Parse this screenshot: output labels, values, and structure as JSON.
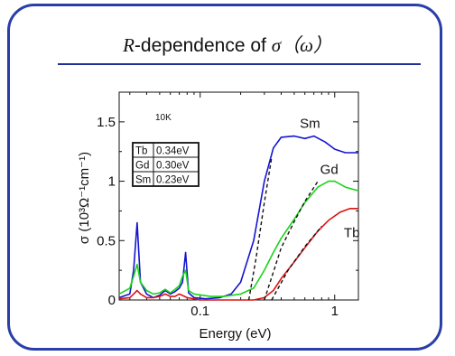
{
  "slide": {
    "title_prefix": "R",
    "title_mid": "-dependence of ",
    "title_sigma": "σ（ω）"
  },
  "chart_data": {
    "type": "line",
    "xscale": "log",
    "xlabel": "Energy (eV)",
    "ylabel": "σ (10³Ω⁻¹cm⁻¹)",
    "xlim": [
      0.025,
      1.5
    ],
    "ylim": [
      0,
      1.75
    ],
    "x_ticks": [
      {
        "v": 0.1,
        "label": "0.1"
      },
      {
        "v": 1,
        "label": "1"
      }
    ],
    "y_ticks": [
      {
        "v": 0,
        "label": "0"
      },
      {
        "v": 0.5,
        "label": "0.5"
      },
      {
        "v": 1,
        "label": "1"
      },
      {
        "v": 1.5,
        "label": "1.5"
      }
    ],
    "temperature_label": "10K",
    "table": [
      [
        "Tb",
        "0.34eV"
      ],
      [
        "Gd",
        "0.30eV"
      ],
      [
        "Sm",
        "0.23eV"
      ]
    ],
    "series": [
      {
        "name": "Sm",
        "color": "#1414d2",
        "points": [
          [
            0.025,
            0.02
          ],
          [
            0.03,
            0.05
          ],
          [
            0.032,
            0.25
          ],
          [
            0.034,
            0.65
          ],
          [
            0.036,
            0.15
          ],
          [
            0.04,
            0.05
          ],
          [
            0.045,
            0.02
          ],
          [
            0.05,
            0.04
          ],
          [
            0.055,
            0.08
          ],
          [
            0.06,
            0.05
          ],
          [
            0.065,
            0.07
          ],
          [
            0.07,
            0.1
          ],
          [
            0.074,
            0.15
          ],
          [
            0.078,
            0.4
          ],
          [
            0.082,
            0.06
          ],
          [
            0.09,
            0.02
          ],
          [
            0.11,
            0.01
          ],
          [
            0.14,
            0.02
          ],
          [
            0.17,
            0.05
          ],
          [
            0.2,
            0.15
          ],
          [
            0.25,
            0.5
          ],
          [
            0.3,
            1.0
          ],
          [
            0.35,
            1.28
          ],
          [
            0.4,
            1.37
          ],
          [
            0.5,
            1.38
          ],
          [
            0.6,
            1.36
          ],
          [
            0.7,
            1.38
          ],
          [
            0.85,
            1.33
          ],
          [
            1.0,
            1.27
          ],
          [
            1.2,
            1.24
          ],
          [
            1.5,
            1.24
          ]
        ]
      },
      {
        "name": "Gd",
        "color": "#18d418",
        "points": [
          [
            0.025,
            0.05
          ],
          [
            0.03,
            0.1
          ],
          [
            0.032,
            0.2
          ],
          [
            0.034,
            0.3
          ],
          [
            0.036,
            0.15
          ],
          [
            0.04,
            0.08
          ],
          [
            0.045,
            0.05
          ],
          [
            0.05,
            0.06
          ],
          [
            0.055,
            0.09
          ],
          [
            0.06,
            0.06
          ],
          [
            0.065,
            0.09
          ],
          [
            0.07,
            0.12
          ],
          [
            0.074,
            0.2
          ],
          [
            0.078,
            0.25
          ],
          [
            0.082,
            0.08
          ],
          [
            0.09,
            0.05
          ],
          [
            0.12,
            0.03
          ],
          [
            0.15,
            0.03
          ],
          [
            0.2,
            0.05
          ],
          [
            0.25,
            0.1
          ],
          [
            0.3,
            0.25
          ],
          [
            0.35,
            0.4
          ],
          [
            0.4,
            0.52
          ],
          [
            0.5,
            0.68
          ],
          [
            0.6,
            0.82
          ],
          [
            0.75,
            0.95
          ],
          [
            0.9,
            1.0
          ],
          [
            1.0,
            1.0
          ],
          [
            1.2,
            0.95
          ],
          [
            1.5,
            0.92
          ]
        ]
      },
      {
        "name": "Tb",
        "color": "#dc1414",
        "points": [
          [
            0.025,
            0.01
          ],
          [
            0.03,
            0.02
          ],
          [
            0.032,
            0.05
          ],
          [
            0.034,
            0.08
          ],
          [
            0.036,
            0.05
          ],
          [
            0.04,
            0.02
          ],
          [
            0.045,
            0.02
          ],
          [
            0.05,
            0.03
          ],
          [
            0.055,
            0.05
          ],
          [
            0.06,
            0.03
          ],
          [
            0.065,
            0.03
          ],
          [
            0.07,
            0.05
          ],
          [
            0.08,
            0.02
          ],
          [
            0.1,
            0.0
          ],
          [
            0.15,
            0.0
          ],
          [
            0.2,
            0.0
          ],
          [
            0.25,
            0.0
          ],
          [
            0.3,
            0.02
          ],
          [
            0.35,
            0.08
          ],
          [
            0.4,
            0.18
          ],
          [
            0.5,
            0.32
          ],
          [
            0.6,
            0.44
          ],
          [
            0.75,
            0.58
          ],
          [
            0.9,
            0.67
          ],
          [
            1.1,
            0.74
          ],
          [
            1.3,
            0.77
          ],
          [
            1.5,
            0.77
          ]
        ]
      }
    ],
    "fits": [
      {
        "for": "Sm",
        "points": [
          [
            0.23,
            0.0
          ],
          [
            0.26,
            0.35
          ],
          [
            0.3,
            0.82
          ],
          [
            0.34,
            1.2
          ]
        ]
      },
      {
        "for": "Gd",
        "points": [
          [
            0.3,
            0.0
          ],
          [
            0.4,
            0.44
          ],
          [
            0.5,
            0.66
          ],
          [
            0.6,
            0.83
          ],
          [
            0.75,
            1.0
          ]
        ]
      },
      {
        "for": "Tb",
        "points": [
          [
            0.34,
            0.0
          ],
          [
            0.45,
            0.25
          ],
          [
            0.6,
            0.45
          ],
          [
            0.8,
            0.62
          ]
        ]
      }
    ],
    "annotations": [
      {
        "text": "Sm",
        "x": 0.55,
        "y": 1.45
      },
      {
        "text": "Gd",
        "x": 0.78,
        "y": 1.06
      },
      {
        "text": "Tb",
        "x": 1.17,
        "y": 0.53
      }
    ]
  }
}
